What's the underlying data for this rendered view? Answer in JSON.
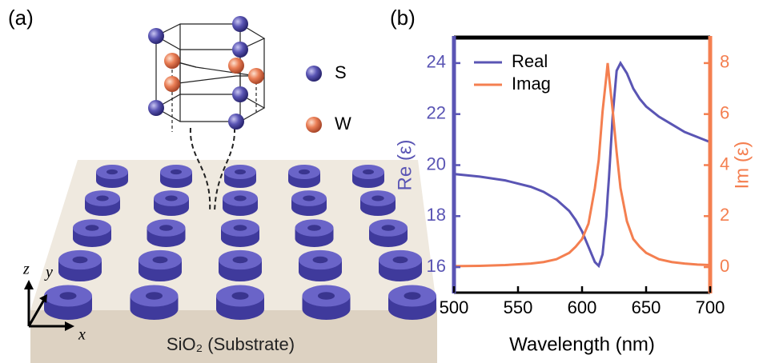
{
  "panel_a": {
    "label": "(a)",
    "legend": [
      "S",
      "W"
    ],
    "substrate_label": "SiO₂  (Substrate)",
    "axes": [
      "x",
      "y",
      "z"
    ]
  },
  "chart_data": {
    "type": "line",
    "panel_label": "(b)",
    "xlabel": "Wavelength (nm)",
    "ylabel": "Re (ε)",
    "y2label": "Im (ε)",
    "x": [
      500,
      520,
      540,
      560,
      570,
      580,
      590,
      595,
      600,
      605,
      610,
      613,
      616,
      619,
      620,
      621,
      624,
      627,
      630,
      635,
      640,
      645,
      650,
      660,
      670,
      680,
      690,
      700
    ],
    "series": [
      {
        "name": "Real",
        "color": "#5a55b4",
        "axis": "y",
        "values": [
          19.65,
          19.55,
          19.4,
          19.15,
          18.95,
          18.65,
          18.2,
          17.85,
          17.4,
          16.8,
          16.2,
          16.05,
          16.5,
          18.0,
          18.8,
          19.5,
          22.0,
          23.7,
          24.0,
          23.6,
          23.0,
          22.6,
          22.3,
          21.9,
          21.6,
          21.3,
          21.1,
          20.9
        ]
      },
      {
        "name": "Imag",
        "color": "#f47f50",
        "axis": "y2",
        "values": [
          0.04,
          0.05,
          0.08,
          0.14,
          0.2,
          0.31,
          0.56,
          0.8,
          1.1,
          1.7,
          3.1,
          4.2,
          6.1,
          7.5,
          8.0,
          7.5,
          6.1,
          4.5,
          3.1,
          1.8,
          1.1,
          0.8,
          0.56,
          0.31,
          0.2,
          0.14,
          0.1,
          0.08
        ]
      }
    ],
    "xlim": [
      500,
      700
    ],
    "xticks": [
      500,
      550,
      600,
      650,
      700
    ],
    "ylim": [
      15,
      25
    ],
    "yticks": [
      16,
      18,
      20,
      22,
      24
    ],
    "y2lim": [
      -1,
      9
    ],
    "y2ticks": [
      0,
      2,
      4,
      6,
      8
    ],
    "legend": "upper left"
  }
}
